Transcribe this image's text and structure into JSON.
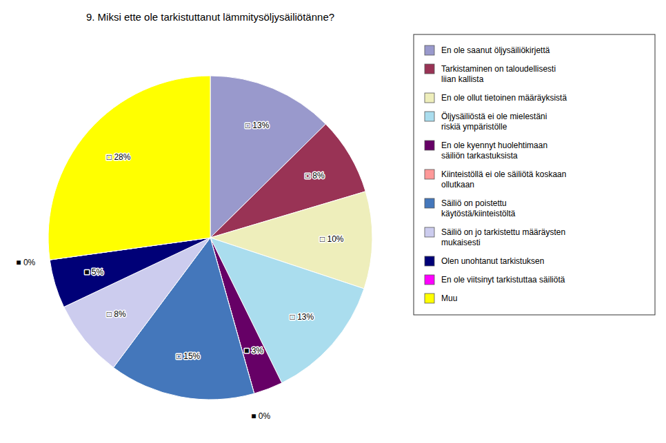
{
  "chart_data": {
    "type": "pie",
    "title": "9. Miksi ette ole tarkistuttanut lämmitysöljysäiliötänne?",
    "categories": [
      "En ole saanut öljysäiliökirjettä",
      "Tarkistaminen on taloudellisesti\nliian kallista",
      "En ole ollut tietoinen määräyksistä",
      "Öljysäiliöstä ei ole mielestäni\nriskiä ympäristölle",
      "En ole kyennyt huolehtimaan\nsäiliön tarkastuksista",
      "Kiinteistöllä ei ole säiliötä koskaan\nollutkaan",
      "Säiliö on poistettu\nkäytöstä/kiinteistöltä",
      "Säiliö on jo tarkistettu määräysten\nmukaisesti",
      "Olen unohtanut tarkistuksen",
      "En ole viitsinyt tarkistuttaa säiliötä",
      "Muu"
    ],
    "values": [
      13,
      8,
      10,
      13,
      3,
      0,
      15,
      8,
      5,
      0,
      28
    ],
    "value_labels": [
      "□ 13%",
      "□ 8%",
      "□ 10%",
      "□ 13%",
      "■ 3%",
      "■ 0%",
      "□ 15%",
      "□ 8%",
      "■ 5%",
      "■ 0%",
      "□ 28%"
    ],
    "colors": [
      "#9999CC",
      "#993355",
      "#EEEEBB",
      "#AADDEE",
      "#660066",
      "#FF9999",
      "#4477BB",
      "#CCCCEE",
      "#000077",
      "#FF00FF",
      "#FFFF00"
    ],
    "data_labels": true,
    "legend": "right"
  }
}
